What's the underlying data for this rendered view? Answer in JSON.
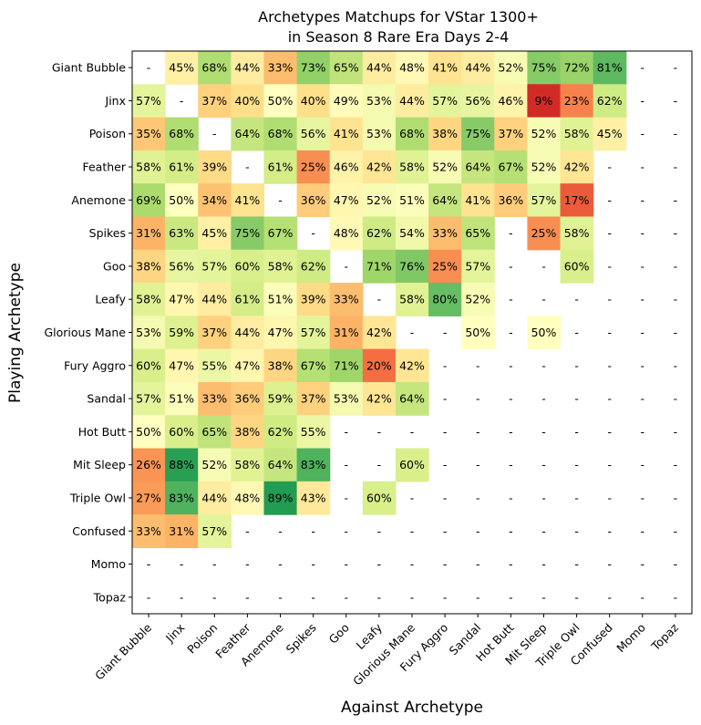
{
  "chart_data": {
    "type": "heatmap",
    "title_lines": [
      "Archetypes Matchups for VStar 1300+",
      "in Season 8 Rare Era Days 2-4"
    ],
    "xlabel": "Against Archetype",
    "ylabel": "Playing Archetype",
    "rows": [
      "Giant Bubble",
      "Jinx",
      "Poison",
      "Feather",
      "Anemone",
      "Spikes",
      "Goo",
      "Leafy",
      "Glorious Mane",
      "Fury Aggro",
      "Sandal",
      "Hot Butt",
      "Mit Sleep",
      "Triple Owl",
      "Confused",
      "Momo",
      "Topaz"
    ],
    "cols": [
      "Giant Bubble",
      "Jinx",
      "Poison",
      "Feather",
      "Anemone",
      "Spikes",
      "Goo",
      "Leafy",
      "Glorious Mane",
      "Fury Aggro",
      "Sandal",
      "Hot Butt",
      "Mit Sleep",
      "Triple Owl",
      "Confused",
      "Momo",
      "Topaz"
    ],
    "values": [
      [
        "-",
        "45%",
        "68%",
        "44%",
        "33%",
        "73%",
        "65%",
        "44%",
        "48%",
        "41%",
        "44%",
        "52%",
        "75%",
        "72%",
        "81%",
        "-",
        "-"
      ],
      [
        "57%",
        "-",
        "37%",
        "40%",
        "50%",
        "40%",
        "49%",
        "53%",
        "44%",
        "57%",
        "56%",
        "46%",
        "9%",
        "23%",
        "62%",
        "-",
        "-"
      ],
      [
        "35%",
        "68%",
        "-",
        "64%",
        "68%",
        "56%",
        "41%",
        "53%",
        "68%",
        "38%",
        "75%",
        "37%",
        "52%",
        "58%",
        "45%",
        "-",
        "-"
      ],
      [
        "58%",
        "61%",
        "39%",
        "-",
        "61%",
        "25%",
        "46%",
        "42%",
        "58%",
        "52%",
        "64%",
        "67%",
        "52%",
        "42%",
        "-",
        "-",
        "-"
      ],
      [
        "69%",
        "50%",
        "34%",
        "41%",
        "-",
        "36%",
        "47%",
        "52%",
        "51%",
        "64%",
        "41%",
        "36%",
        "57%",
        "17%",
        "-",
        "-",
        "-"
      ],
      [
        "31%",
        "63%",
        "45%",
        "75%",
        "67%",
        "-",
        "48%",
        "62%",
        "54%",
        "33%",
        "65%",
        "-",
        "25%",
        "58%",
        "-",
        "-",
        "-"
      ],
      [
        "38%",
        "56%",
        "57%",
        "60%",
        "58%",
        "62%",
        "-",
        "71%",
        "76%",
        "25%",
        "57%",
        "-",
        "-",
        "60%",
        "-",
        "-",
        "-"
      ],
      [
        "58%",
        "47%",
        "44%",
        "61%",
        "51%",
        "39%",
        "33%",
        "-",
        "58%",
        "80%",
        "52%",
        "-",
        "-",
        "-",
        "-",
        "-",
        "-"
      ],
      [
        "53%",
        "59%",
        "37%",
        "44%",
        "47%",
        "57%",
        "31%",
        "42%",
        "-",
        "-",
        "50%",
        "-",
        "50%",
        "-",
        "-",
        "-",
        "-"
      ],
      [
        "60%",
        "47%",
        "55%",
        "47%",
        "38%",
        "67%",
        "71%",
        "20%",
        "42%",
        "-",
        "-",
        "-",
        "-",
        "-",
        "-",
        "-",
        "-"
      ],
      [
        "57%",
        "51%",
        "33%",
        "36%",
        "59%",
        "37%",
        "53%",
        "42%",
        "64%",
        "-",
        "-",
        "-",
        "-",
        "-",
        "-",
        "-",
        "-"
      ],
      [
        "50%",
        "60%",
        "65%",
        "38%",
        "62%",
        "55%",
        "-",
        "-",
        "-",
        "-",
        "-",
        "-",
        "-",
        "-",
        "-",
        "-",
        "-"
      ],
      [
        "26%",
        "88%",
        "52%",
        "58%",
        "64%",
        "83%",
        "-",
        "-",
        "60%",
        "-",
        "-",
        "-",
        "-",
        "-",
        "-",
        "-",
        "-"
      ],
      [
        "27%",
        "83%",
        "44%",
        "48%",
        "89%",
        "43%",
        "-",
        "60%",
        "-",
        "-",
        "-",
        "-",
        "-",
        "-",
        "-",
        "-",
        "-"
      ],
      [
        "33%",
        "31%",
        "57%",
        "-",
        "-",
        "-",
        "-",
        "-",
        "-",
        "-",
        "-",
        "-",
        "-",
        "-",
        "-",
        "-",
        "-"
      ],
      [
        "-",
        "-",
        "-",
        "-",
        "-",
        "-",
        "-",
        "-",
        "-",
        "-",
        "-",
        "-",
        "-",
        "-",
        "-",
        "-",
        "-"
      ],
      [
        "-",
        "-",
        "-",
        "-",
        "-",
        "-",
        "-",
        "-",
        "-",
        "-",
        "-",
        "-",
        "-",
        "-",
        "-",
        "-",
        "-"
      ]
    ],
    "color_scale": {
      "domain": [
        0,
        100
      ],
      "colors": [
        "#a50026",
        "#d73027",
        "#f46d43",
        "#fdae61",
        "#fee08b",
        "#ffffbf",
        "#d9ef8b",
        "#a6d96a",
        "#66bd63",
        "#1a9850",
        "#006837"
      ]
    }
  }
}
